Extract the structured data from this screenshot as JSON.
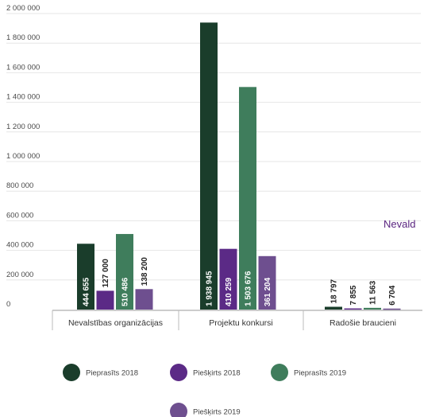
{
  "chart_data": {
    "type": "bar",
    "categories": [
      "Nevalstības organizācijas",
      "Projektu konkursi",
      "Radošie braucieni"
    ],
    "series": [
      {
        "name": "Pieprasīts 2018",
        "color": "#1a3d2b",
        "values": [
          444655,
          1938945,
          18797
        ],
        "labels": [
          "444 655",
          "1 938 945",
          "18 797"
        ]
      },
      {
        "name": "Piešķirts 2018",
        "color": "#5b2a86",
        "values": [
          127000,
          410259,
          7855
        ],
        "labels": [
          "127 000",
          "410 259",
          "7 855"
        ]
      },
      {
        "name": "Pieprasīts 2019",
        "color": "#3f7d5c",
        "values": [
          510486,
          1503676,
          11563
        ],
        "labels": [
          "510 486",
          "1 503 676",
          "11 563"
        ]
      },
      {
        "name": "Piešķirts 2019",
        "color": "#6e4f8f",
        "values": [
          138200,
          361204,
          6704
        ],
        "labels": [
          "138 200",
          "361 204",
          "6 704"
        ]
      }
    ],
    "yticks": [
      "0",
      "200 000",
      "400 000",
      "600 000",
      "800 000",
      "1 000 000",
      "1 200 000",
      "1 400 000",
      "1 600 000",
      "1 800 000",
      "2 000 000"
    ],
    "ylim": [
      0,
      2000000
    ],
    "grid": true,
    "legend": "bottom",
    "side_text": "Nevald",
    "title": "",
    "xlabel": "",
    "ylabel": ""
  }
}
